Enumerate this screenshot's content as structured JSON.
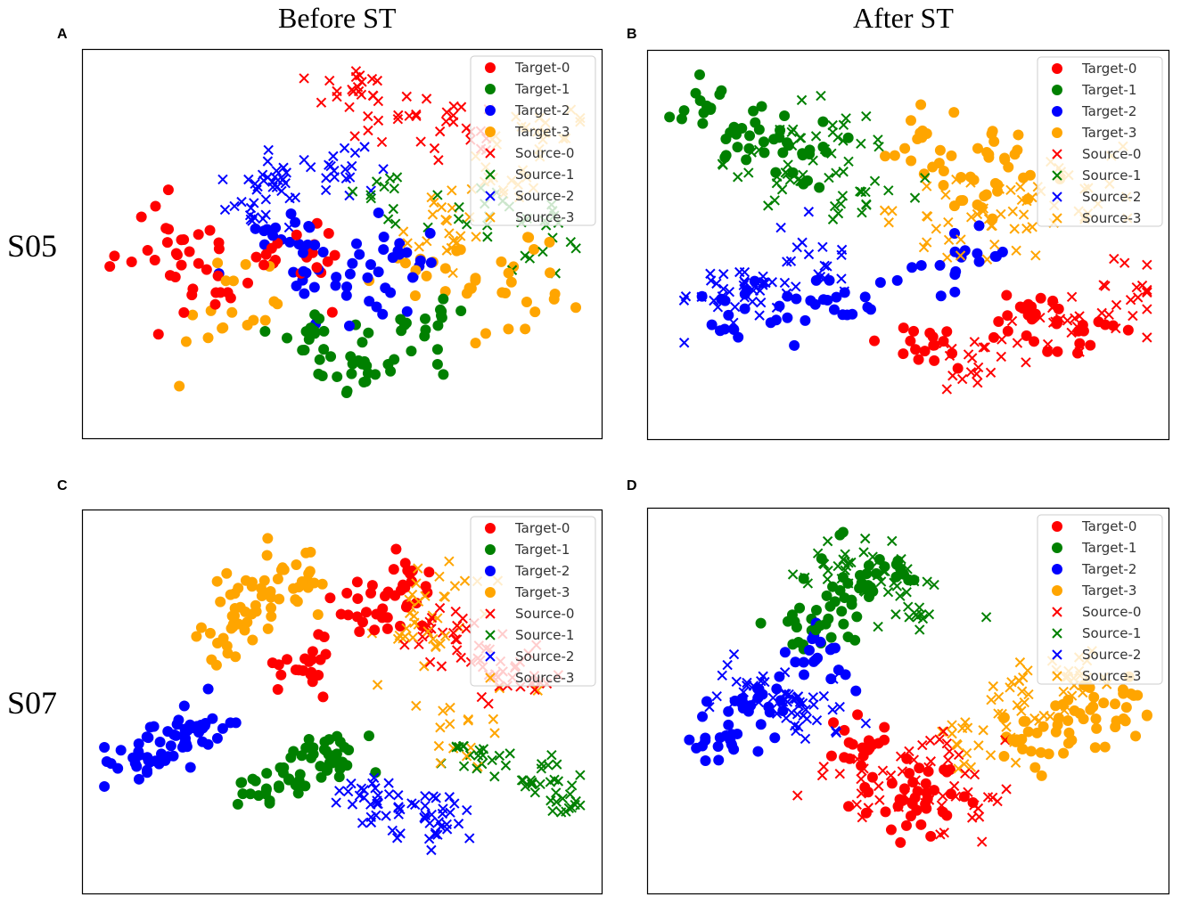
{
  "column_titles": [
    "Before ST",
    "After ST"
  ],
  "row_labels": [
    "S05",
    "S07"
  ],
  "colors": {
    "class0": "#ff0000",
    "class1": "#008000",
    "class2": "#0000ff",
    "class3": "#ffa500"
  },
  "chart_data": [
    {
      "type": "scatter",
      "panel": "A",
      "subject": "S05",
      "condition": "Before ST",
      "legend": [
        "Target-0",
        "Target-1",
        "Target-2",
        "Target-3",
        "Source-0",
        "Source-1",
        "Source-2",
        "Source-3"
      ],
      "xlim": [
        0,
        100
      ],
      "ylim": [
        0,
        100
      ],
      "clusters": [
        {
          "series": "Target-0",
          "marker": "o",
          "class": 0,
          "centers": [
            [
              25,
              42
            ],
            [
              12,
              50
            ],
            [
              40,
              45
            ]
          ],
          "spread": 11,
          "n": 55
        },
        {
          "series": "Target-1",
          "marker": "o",
          "class": 1,
          "centers": [
            [
              55,
              18
            ],
            [
              45,
              25
            ],
            [
              68,
              26
            ]
          ],
          "spread": 8,
          "n": 55
        },
        {
          "series": "Target-2",
          "marker": "o",
          "class": 2,
          "centers": [
            [
              50,
              40
            ],
            [
              60,
              45
            ],
            [
              38,
              52
            ]
          ],
          "spread": 9,
          "n": 60
        },
        {
          "series": "Target-3",
          "marker": "o",
          "class": 3,
          "centers": [
            [
              70,
              40
            ],
            [
              85,
              35
            ],
            [
              30,
              30
            ]
          ],
          "spread": 12,
          "n": 55
        },
        {
          "series": "Source-0",
          "marker": "x",
          "class": 0,
          "centers": [
            [
              60,
              85
            ],
            [
              75,
              82
            ],
            [
              50,
              90
            ]
          ],
          "spread": 8,
          "n": 50
        },
        {
          "series": "Source-1",
          "marker": "x",
          "class": 1,
          "centers": [
            [
              82,
              60
            ],
            [
              60,
              62
            ],
            [
              92,
              52
            ]
          ],
          "spread": 9,
          "n": 40
        },
        {
          "series": "Source-2",
          "marker": "x",
          "class": 2,
          "centers": [
            [
              38,
              68
            ],
            [
              50,
              70
            ],
            [
              32,
              62
            ]
          ],
          "spread": 7,
          "n": 55
        },
        {
          "series": "Source-3",
          "marker": "x",
          "class": 3,
          "centers": [
            [
              80,
              68
            ],
            [
              92,
              80
            ],
            [
              70,
              55
            ]
          ],
          "spread": 9,
          "n": 55
        }
      ]
    },
    {
      "type": "scatter",
      "panel": "B",
      "subject": "S05",
      "condition": "After ST",
      "legend": [
        "Target-0",
        "Target-1",
        "Target-2",
        "Target-3",
        "Source-0",
        "Source-1",
        "Source-2",
        "Source-3"
      ],
      "xlim": [
        0,
        100
      ],
      "ylim": [
        0,
        100
      ],
      "clusters": [
        {
          "series": "Target-0",
          "marker": "o",
          "class": 0,
          "centers": [
            [
              72,
              30
            ],
            [
              55,
              25
            ],
            [
              85,
              25
            ]
          ],
          "spread": 9,
          "n": 50
        },
        {
          "series": "Target-1",
          "marker": "o",
          "class": 1,
          "centers": [
            [
              18,
              80
            ],
            [
              30,
              72
            ],
            [
              10,
              85
            ]
          ],
          "spread": 8,
          "n": 50
        },
        {
          "series": "Target-2",
          "marker": "o",
          "class": 2,
          "centers": [
            [
              20,
              30
            ],
            [
              35,
              35
            ],
            [
              60,
              45
            ]
          ],
          "spread": 9,
          "n": 55
        },
        {
          "series": "Target-3",
          "marker": "o",
          "class": 3,
          "centers": [
            [
              62,
              65
            ],
            [
              72,
              72
            ],
            [
              55,
              80
            ]
          ],
          "spread": 9,
          "n": 50
        },
        {
          "series": "Source-0",
          "marker": "x",
          "class": 0,
          "centers": [
            [
              80,
              30
            ],
            [
              95,
              35
            ],
            [
              65,
              20
            ]
          ],
          "spread": 9,
          "n": 55
        },
        {
          "series": "Source-1",
          "marker": "x",
          "class": 1,
          "centers": [
            [
              32,
              80
            ],
            [
              40,
              65
            ],
            [
              25,
              70
            ]
          ],
          "spread": 10,
          "n": 60
        },
        {
          "series": "Source-2",
          "marker": "x",
          "class": 2,
          "centers": [
            [
              20,
              38
            ],
            [
              30,
              45
            ],
            [
              12,
              35
            ]
          ],
          "spread": 8,
          "n": 55
        },
        {
          "series": "Source-3",
          "marker": "x",
          "class": 3,
          "centers": [
            [
              70,
              55
            ],
            [
              85,
              65
            ],
            [
              55,
              55
            ]
          ],
          "spread": 11,
          "n": 60
        }
      ]
    },
    {
      "type": "scatter",
      "panel": "C",
      "subject": "S07",
      "condition": "Before ST",
      "legend": [
        "Target-0",
        "Target-1",
        "Target-2",
        "Target-3",
        "Source-0",
        "Source-1",
        "Source-2",
        "Source-3"
      ],
      "xlim": [
        0,
        100
      ],
      "ylim": [
        0,
        100
      ],
      "clusters": [
        {
          "series": "Target-0",
          "marker": "o",
          "class": 0,
          "centers": [
            [
              55,
              75
            ],
            [
              60,
              82
            ],
            [
              42,
              58
            ]
          ],
          "spread": 7,
          "n": 60
        },
        {
          "series": "Target-1",
          "marker": "o",
          "class": 1,
          "centers": [
            [
              42,
              33
            ],
            [
              35,
              25
            ],
            [
              48,
              35
            ]
          ],
          "spread": 6,
          "n": 60
        },
        {
          "series": "Target-2",
          "marker": "o",
          "class": 2,
          "centers": [
            [
              15,
              38
            ],
            [
              22,
              42
            ],
            [
              8,
              33
            ]
          ],
          "spread": 7,
          "n": 65
        },
        {
          "series": "Target-3",
          "marker": "o",
          "class": 3,
          "centers": [
            [
              30,
              80
            ],
            [
              28,
              70
            ],
            [
              40,
              85
            ]
          ],
          "spread": 9,
          "n": 65
        },
        {
          "series": "Source-0",
          "marker": "x",
          "class": 0,
          "centers": [
            [
              78,
              62
            ],
            [
              70,
              70
            ],
            [
              86,
              55
            ]
          ],
          "spread": 8,
          "n": 55
        },
        {
          "series": "Source-1",
          "marker": "x",
          "class": 1,
          "centers": [
            [
              88,
              30
            ],
            [
              78,
              35
            ],
            [
              95,
              22
            ]
          ],
          "spread": 7,
          "n": 50
        },
        {
          "series": "Source-2",
          "marker": "x",
          "class": 2,
          "centers": [
            [
              62,
              20
            ],
            [
              55,
              25
            ],
            [
              70,
              15
            ]
          ],
          "spread": 7,
          "n": 60
        },
        {
          "series": "Source-3",
          "marker": "x",
          "class": 3,
          "centers": [
            [
              62,
              70
            ],
            [
              70,
              80
            ],
            [
              75,
              45
            ]
          ],
          "spread": 10,
          "n": 55
        }
      ]
    },
    {
      "type": "scatter",
      "panel": "D",
      "subject": "S07",
      "condition": "After ST",
      "legend": [
        "Target-0",
        "Target-1",
        "Target-2",
        "Target-3",
        "Source-0",
        "Source-1",
        "Source-2",
        "Source-3"
      ],
      "xlim": [
        0,
        100
      ],
      "ylim": [
        0,
        100
      ],
      "clusters": [
        {
          "series": "Target-0",
          "marker": "o",
          "class": 0,
          "centers": [
            [
              55,
              25
            ],
            [
              48,
              18
            ],
            [
              40,
              38
            ]
          ],
          "spread": 8,
          "n": 60
        },
        {
          "series": "Target-1",
          "marker": "o",
          "class": 1,
          "centers": [
            [
              38,
              78
            ],
            [
              45,
              85
            ],
            [
              30,
              70
            ]
          ],
          "spread": 8,
          "n": 60
        },
        {
          "series": "Target-2",
          "marker": "o",
          "class": 2,
          "centers": [
            [
              12,
              40
            ],
            [
              20,
              50
            ],
            [
              30,
              62
            ]
          ],
          "spread": 7,
          "n": 60
        },
        {
          "series": "Target-3",
          "marker": "o",
          "class": 3,
          "centers": [
            [
              85,
              45
            ],
            [
              75,
              38
            ],
            [
              92,
              50
            ]
          ],
          "spread": 8,
          "n": 60
        },
        {
          "series": "Source-0",
          "marker": "x",
          "class": 0,
          "centers": [
            [
              55,
              35
            ],
            [
              62,
              22
            ],
            [
              40,
              28
            ]
          ],
          "spread": 9,
          "n": 55
        },
        {
          "series": "Source-1",
          "marker": "x",
          "class": 1,
          "centers": [
            [
              45,
              85
            ],
            [
              50,
              75
            ],
            [
              35,
              88
            ]
          ],
          "spread": 8,
          "n": 55
        },
        {
          "series": "Source-2",
          "marker": "x",
          "class": 2,
          "centers": [
            [
              25,
              50
            ],
            [
              32,
              45
            ],
            [
              18,
              55
            ]
          ],
          "spread": 7,
          "n": 55
        },
        {
          "series": "Source-3",
          "marker": "x",
          "class": 3,
          "centers": [
            [
              72,
              50
            ],
            [
              82,
              55
            ],
            [
              65,
              40
            ]
          ],
          "spread": 9,
          "n": 60
        }
      ]
    }
  ]
}
